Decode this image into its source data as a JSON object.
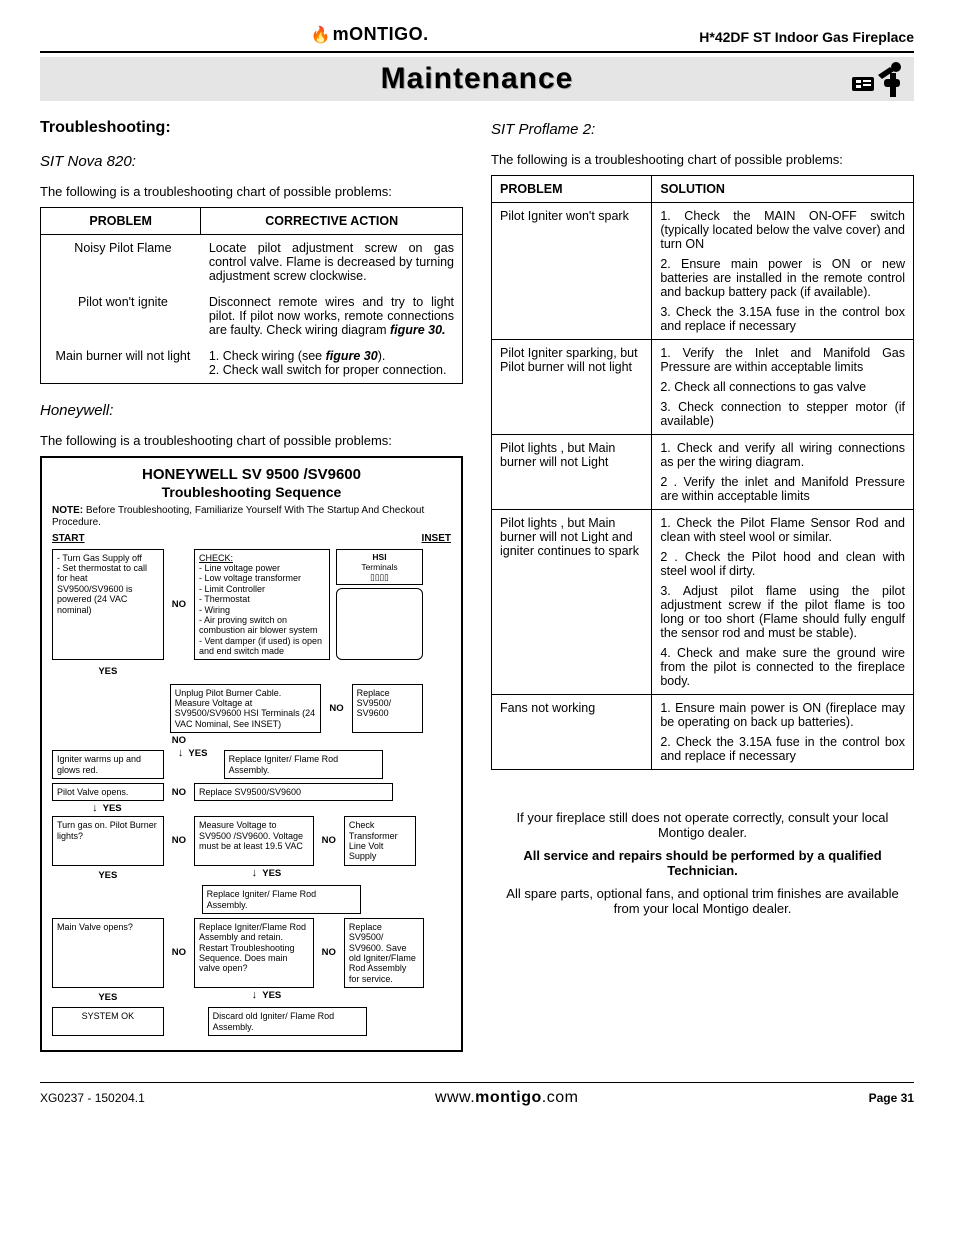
{
  "header": {
    "logo_brand": "ONTIGO",
    "logo_prefix": "m",
    "product": "H*42DF ST Indoor Gas Fireplace"
  },
  "banner": {
    "title": "Maintenance"
  },
  "left": {
    "section_heading": "Troubleshooting:",
    "nova": {
      "heading": "SIT Nova 820:",
      "intro": "The following is a troubleshooting chart of possible problems:",
      "columns": [
        "PROBLEM",
        "CORRECTIVE ACTION"
      ],
      "rows": [
        {
          "problem": "Noisy Pilot Flame",
          "action": "Locate pilot adjustment screw on gas control valve. Flame is decreased by turning adjustment screw clockwise."
        },
        {
          "problem": "Pilot won't ignite",
          "action_pre": "Disconnect remote wires and try to light pilot. If pilot now works, remote connections are faulty. Check wiring diagram ",
          "action_fig": "figure 30."
        },
        {
          "problem": "Main burner will not light",
          "action_l1_pre": "1. Check wiring (see ",
          "action_l1_fig": "figure 30",
          "action_l1_post": ").",
          "action_l2": "2. Check wall switch for proper connection."
        }
      ]
    },
    "honeywell": {
      "heading": "Honeywell:",
      "intro": "The following is a troubleshooting chart of possible problems:",
      "fc_title1": "HONEYWELL SV 9500 /SV9600",
      "fc_title2": "Troubleshooting Sequence",
      "fc_note_label": "NOTE:",
      "fc_note_text": "Before Troubleshooting, Familiarize Yourself With The Startup And Checkout Procedure.",
      "start": "START",
      "inset": "INSET",
      "hsi": "HSI",
      "terminals": "Terminals",
      "step1_left": "- Turn Gas Supply off\n- Set thermostat to call for heat\nSV9500/SV9600 is powered (24 VAC nominal)",
      "step1_right_head": "CHECK:",
      "step1_right": "- Line voltage power\n- Low voltage transformer\n- Limit Controller\n- Thermostat\n- Wiring\n- Air proving switch on combustion air blower system\n- Vent damper (if used) is open and end switch made",
      "no": "NO",
      "yes": "YES",
      "step2_mid": "Unplug Pilot Burner Cable. Measure Voltage at SV9500/SV9600 HSI Terminals (24 VAC Nominal, See INSET)",
      "step2_right": "Replace SV9500/ SV9600",
      "step3_left": "Igniter warms up and glows red.",
      "step3_right": "Replace Igniter/ Flame Rod Assembly.",
      "step4_left": "Pilot Valve opens.",
      "step4_right": "Replace SV9500/SV9600",
      "step5_left": "Turn gas on. Pilot Burner lights?",
      "step5_mid": "Measure Voltage to SV9500 /SV9600. Voltage must be at least 19.5 VAC",
      "step5_right": "Check Transformer Line Volt Supply",
      "step5_b": "Replace Igniter/ Flame Rod Assembly.",
      "step6_left": "Main Valve opens?",
      "step6_mid": "Replace Igniter/Flame Rod Assembly and retain. Restart Troubleshooting Sequence. Does main valve open?",
      "step6_right": "Replace SV9500/ SV9600. Save old Igniter/Flame Rod Assembly for service.",
      "step7_left": "SYSTEM OK",
      "step7_right": "Discard old Igniter/ Flame Rod Assembly."
    }
  },
  "right": {
    "heading": "SIT Proflame 2:",
    "intro": "The following is a troubleshooting chart of possible problems:",
    "columns": [
      "PROBLEM",
      "SOLUTION"
    ],
    "rows": [
      {
        "problem": "Pilot Igniter won't spark",
        "solutions": [
          "1. Check the MAIN ON-OFF switch (typically located below the valve cover) and turn ON",
          "2. Ensure main power is ON or new batteries are installed in the remote control and backup battery pack (if available).",
          "3. Check the 3.15A fuse in the control box and replace if necessary"
        ]
      },
      {
        "problem": "Pilot Igniter sparking, but Pilot burner will not light",
        "solutions": [
          "1. Verify the Inlet and Manifold Gas Pressure are within acceptable limits",
          "2. Check all connections to gas valve",
          "3. Check connection to stepper motor (if available)"
        ]
      },
      {
        "problem": "Pilot lights , but Main burner will not Light",
        "solutions": [
          "1. Check and verify all wiring connections as per the wiring diagram.",
          "2 . Verify the inlet and Manifold Pressure are within acceptable limits"
        ]
      },
      {
        "problem": "Pilot lights , but Main burner will not Light and igniter continues to spark",
        "solutions": [
          "1. Check the Pilot Flame Sensor Rod and clean with steel wool or similar.",
          "2 . Check the Pilot hood and clean with steel wool if dirty.",
          "3. Adjust pilot flame using the pilot adjustment screw if the pilot flame is too long or too short (Flame should fully engulf the sensor rod and must be stable).",
          "4. Check and make sure the ground wire from the pilot is connected to the fireplace body."
        ]
      },
      {
        "problem": "Fans not working",
        "solutions": [
          "1. Ensure main power is ON (fireplace may be operating on back up batteries).",
          "2. Check the 3.15A fuse in the control box and replace if necessary"
        ]
      }
    ],
    "closing1": "If your fireplace still does not operate correctly, consult your local Montigo dealer.",
    "closing2": "All service and repairs should be performed by a qualified Technician.",
    "closing3": "All spare parts, optional fans, and optional trim finishes are available from your local Montigo dealer."
  },
  "footer": {
    "left": "XG0237 - 150204.1",
    "url_pre": "www.",
    "url_bold": "montigo",
    "url_post": ".com",
    "page_label": "Page ",
    "page_num": "31"
  }
}
